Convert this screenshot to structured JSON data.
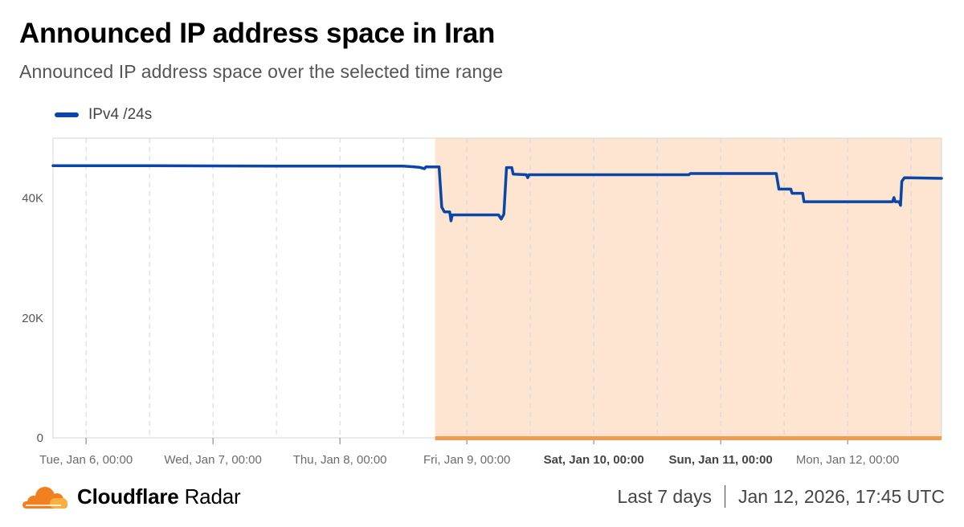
{
  "header": {
    "title": "Announced IP address space in Iran",
    "subtitle": "Announced IP address space over the selected time range"
  },
  "colors": {
    "series": "#0a46a8",
    "highlight_fill": "#fde5d1",
    "highlight_bar": "#f29a4e",
    "grid": "#d6d6d6"
  },
  "footer": {
    "brand_strong": "Cloudflare",
    "brand_light": "Radar",
    "brand_icon": "cloudflare-cloud-icon",
    "range_label": "Last 7 days",
    "timestamp": "Jan 12, 2026, 17:45 UTC"
  },
  "chart_data": {
    "type": "line",
    "title": "Announced IP address space in Iran",
    "subtitle": "Announced IP address space over the selected time range",
    "ylim": [
      0,
      50000
    ],
    "y_ticks": [
      0,
      20000,
      40000
    ],
    "y_tick_labels": [
      "0",
      "20K",
      "40K"
    ],
    "xlim": [
      "2026-01-05T17:45",
      "2026-01-12T17:45"
    ],
    "x_ticks": [
      {
        "t": "2026-01-06T00:00",
        "label": "Tue, Jan 6, 00:00",
        "bold": false
      },
      {
        "t": "2026-01-07T00:00",
        "label": "Wed, Jan 7, 00:00",
        "bold": false
      },
      {
        "t": "2026-01-08T00:00",
        "label": "Thu, Jan 8, 00:00",
        "bold": false
      },
      {
        "t": "2026-01-09T00:00",
        "label": "Fri, Jan 9, 00:00",
        "bold": false
      },
      {
        "t": "2026-01-10T00:00",
        "label": "Sat, Jan 10, 00:00",
        "bold": true
      },
      {
        "t": "2026-01-11T00:00",
        "label": "Sun, Jan 11, 00:00",
        "bold": true
      },
      {
        "t": "2026-01-12T00:00",
        "label": "Mon, Jan 12, 00:00",
        "bold": false
      }
    ],
    "minor_grid": [
      "2026-01-06T12:00",
      "2026-01-07T12:00",
      "2026-01-08T12:00",
      "2026-01-09T12:00",
      "2026-01-10T12:00",
      "2026-01-11T12:00",
      "2026-01-12T12:00"
    ],
    "highlight_range": [
      "2026-01-08T18:00",
      "2026-01-12T17:45"
    ],
    "grid": true,
    "legend_position": "top-left",
    "series": [
      {
        "name": "IPv4 /24s",
        "color": "#0a46a8",
        "points": [
          [
            "2026-01-05T17:45",
            45400
          ],
          [
            "2026-01-06T12:00",
            45400
          ],
          [
            "2026-01-07T12:00",
            45350
          ],
          [
            "2026-01-08T12:00",
            45350
          ],
          [
            "2026-01-08T15:00",
            45150
          ],
          [
            "2026-01-08T16:00",
            44900
          ],
          [
            "2026-01-08T16:15",
            45200
          ],
          [
            "2026-01-08T18:45",
            45200
          ],
          [
            "2026-01-08T19:15",
            38500
          ],
          [
            "2026-01-08T19:45",
            37700
          ],
          [
            "2026-01-08T20:45",
            37700
          ],
          [
            "2026-01-08T21:00",
            36200
          ],
          [
            "2026-01-08T21:15",
            37200
          ],
          [
            "2026-01-09T06:00",
            37200
          ],
          [
            "2026-01-09T06:30",
            36500
          ],
          [
            "2026-01-09T07:00",
            37300
          ],
          [
            "2026-01-09T07:30",
            45100
          ],
          [
            "2026-01-09T08:30",
            45100
          ],
          [
            "2026-01-09T08:45",
            44000
          ],
          [
            "2026-01-09T11:15",
            43900
          ],
          [
            "2026-01-09T11:30",
            43400
          ],
          [
            "2026-01-09T11:45",
            43900
          ],
          [
            "2026-01-10T18:00",
            43900
          ],
          [
            "2026-01-10T18:15",
            44100
          ],
          [
            "2026-01-11T10:30",
            44100
          ],
          [
            "2026-01-11T11:00",
            41500
          ],
          [
            "2026-01-11T13:15",
            41500
          ],
          [
            "2026-01-11T13:30",
            40800
          ],
          [
            "2026-01-11T15:30",
            40800
          ],
          [
            "2026-01-11T15:45",
            39400
          ],
          [
            "2026-01-12T08:30",
            39400
          ],
          [
            "2026-01-12T08:45",
            40100
          ],
          [
            "2026-01-12T09:00",
            39400
          ],
          [
            "2026-01-12T09:45",
            39400
          ],
          [
            "2026-01-12T10:00",
            38800
          ],
          [
            "2026-01-12T10:15",
            42800
          ],
          [
            "2026-01-12T10:45",
            43400
          ],
          [
            "2026-01-12T17:45",
            43300
          ]
        ]
      }
    ]
  }
}
